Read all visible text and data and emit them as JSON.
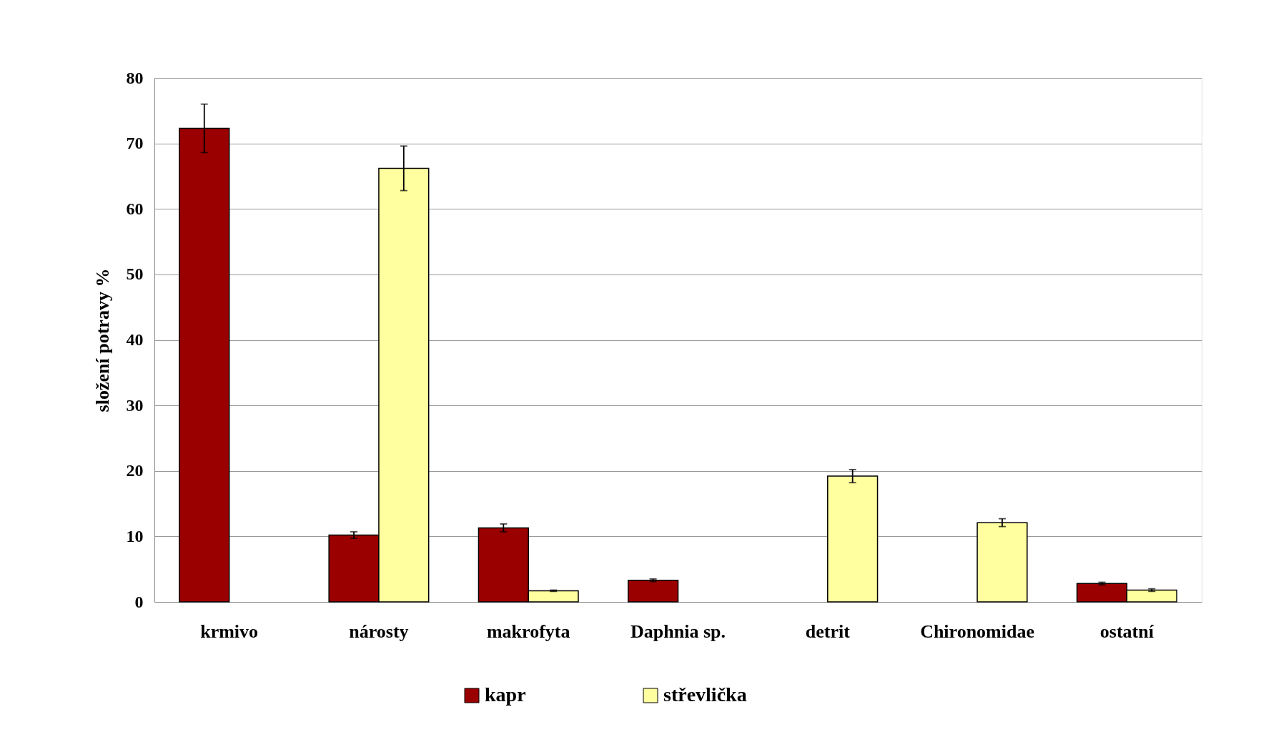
{
  "chart_data": {
    "type": "bar",
    "ylabel": "složení potravy %",
    "categories": [
      "krmivo",
      "nárosty",
      "makrofyta",
      "Daphnia sp.",
      "detrit",
      "Chironomidae",
      "ostatní"
    ],
    "series": [
      {
        "name": "kapr",
        "color": "#9b0000",
        "values": [
          72.3,
          10.2,
          11.3,
          3.3,
          null,
          null,
          2.8
        ],
        "errors": [
          3.7,
          0.5,
          0.6,
          0.2,
          null,
          null,
          0.2
        ]
      },
      {
        "name": "střevlička",
        "color": "#ffffa0",
        "values": [
          null,
          66.2,
          1.7,
          null,
          19.2,
          12.1,
          1.8
        ],
        "errors": [
          null,
          3.4,
          0.1,
          null,
          1.0,
          0.6,
          0.2
        ]
      }
    ],
    "ylim": [
      0,
      80
    ],
    "yticks": [
      0,
      10,
      20,
      30,
      40,
      50,
      60,
      70,
      80
    ],
    "grid": "y",
    "legend": "bottom"
  }
}
